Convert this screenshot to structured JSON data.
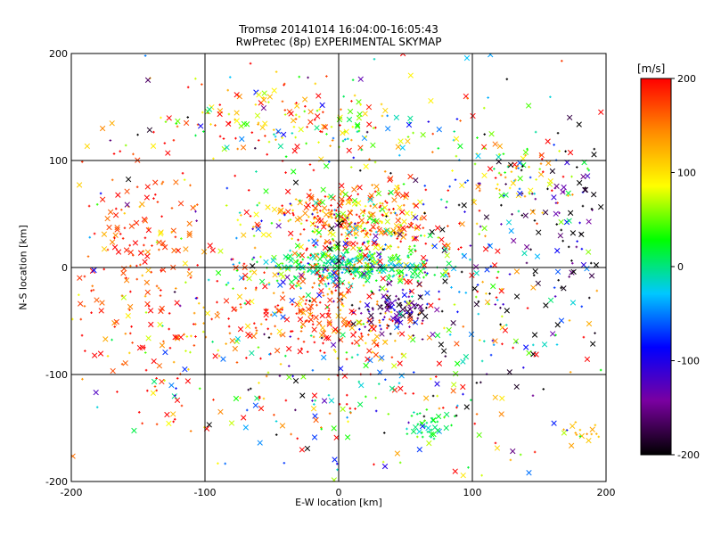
{
  "chart_data": {
    "type": "scatter",
    "title": "Tromsø 20141014 16:04:00-16:05:43",
    "subtitle": "RwPretec (8p) EXPERIMENTAL SKYMAP",
    "xlabel": "E-W location [km]",
    "ylabel": "N-S location [km]",
    "xlim": [
      -200,
      200
    ],
    "ylim": [
      -200,
      200
    ],
    "xticks": [
      "-200",
      "-100",
      "0",
      "100",
      "200"
    ],
    "yticks": [
      "-200",
      "-100",
      "0",
      "100",
      "200"
    ],
    "grid": true,
    "markers": [
      "x",
      "+"
    ],
    "colorbar": {
      "unit": "[m/s]",
      "range": [
        -200,
        200
      ],
      "ticks": [
        "200",
        "100",
        "0",
        "-100",
        "-200"
      ],
      "colormap": [
        "#000000",
        "#7a00a0",
        "#0000ff",
        "#00c8ff",
        "#00ff00",
        "#ffff00",
        "#ff8c00",
        "#ff0000"
      ]
    },
    "clusters": [
      {
        "x": 10,
        "y": 0,
        "sx": 35,
        "sy": 8,
        "n": 260,
        "v": 10,
        "sv": 30
      },
      {
        "x": 20,
        "y": 45,
        "sx": 30,
        "sy": 18,
        "n": 220,
        "v": 160,
        "sv": 60
      },
      {
        "x": -20,
        "y": 50,
        "sx": 25,
        "sy": 8,
        "n": 60,
        "v": 120,
        "sv": 40
      },
      {
        "x": -10,
        "y": -45,
        "sx": 40,
        "sy": 20,
        "n": 220,
        "v": 170,
        "sv": 40
      },
      {
        "x": 45,
        "y": -40,
        "sx": 15,
        "sy": 12,
        "n": 110,
        "v": -150,
        "sv": 40
      },
      {
        "x": 10,
        "y": 20,
        "sx": 45,
        "sy": 25,
        "n": 200,
        "v": 40,
        "sv": 140
      },
      {
        "x": -150,
        "y": 30,
        "sx": 30,
        "sy": 40,
        "n": 120,
        "v": 180,
        "sv": 30
      },
      {
        "x": -60,
        "y": 140,
        "sx": 50,
        "sy": 20,
        "n": 130,
        "v": 130,
        "sv": 100
      },
      {
        "x": 30,
        "y": 130,
        "sx": 30,
        "sy": 15,
        "n": 50,
        "v": 60,
        "sv": 80
      },
      {
        "x": 130,
        "y": 90,
        "sx": 25,
        "sy": 20,
        "n": 80,
        "v": 80,
        "sv": 90
      },
      {
        "x": 170,
        "y": 50,
        "sx": 25,
        "sy": 40,
        "n": 90,
        "v": -180,
        "sv": 60
      },
      {
        "x": 70,
        "y": -150,
        "sx": 10,
        "sy": 8,
        "n": 40,
        "v": 10,
        "sv": 20
      },
      {
        "x": 185,
        "y": -155,
        "sx": 8,
        "sy": 6,
        "n": 15,
        "v": 120,
        "sv": 10
      },
      {
        "x": 0,
        "y": -110,
        "sx": 60,
        "sy": 40,
        "n": 150,
        "v": 80,
        "sv": 140
      },
      {
        "x": -140,
        "y": -70,
        "sx": 40,
        "sy": 50,
        "n": 120,
        "v": 170,
        "sv": 60
      },
      {
        "x": 120,
        "y": -40,
        "sx": 50,
        "sy": 60,
        "n": 120,
        "v": -60,
        "sv": 140
      },
      {
        "x": 0,
        "y": 0,
        "sx": 120,
        "sy": 110,
        "n": 350,
        "v": 40,
        "sv": 150
      }
    ]
  }
}
